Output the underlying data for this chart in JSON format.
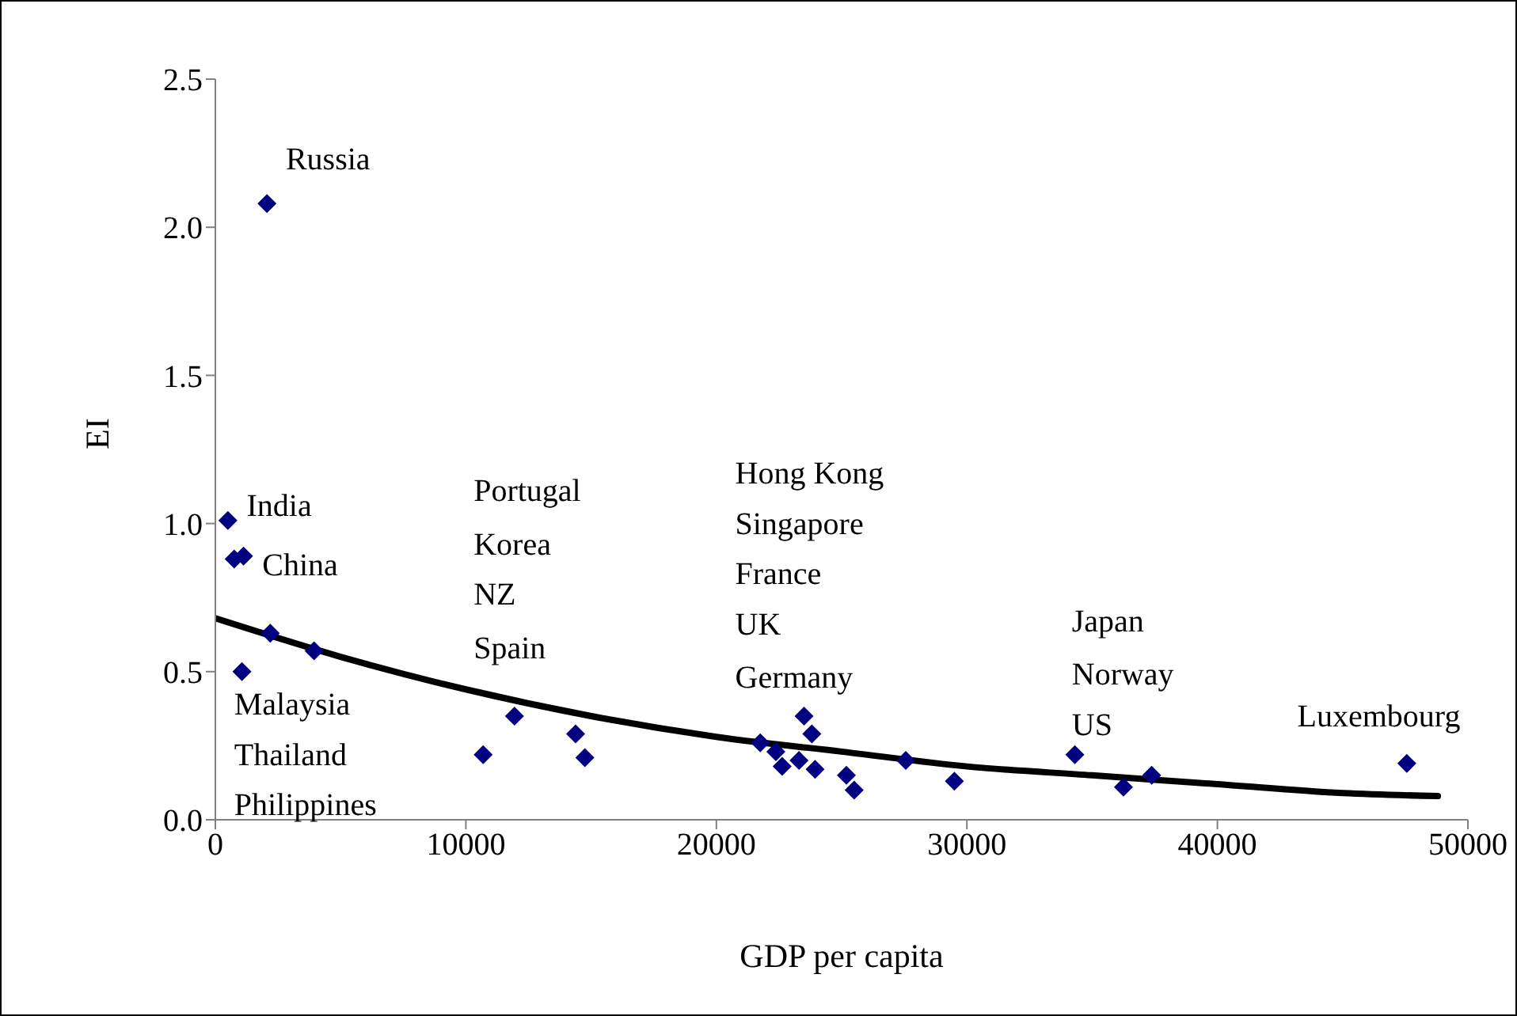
{
  "chart_data": {
    "type": "scatter",
    "xlabel": "GDP per capita",
    "ylabel": "EI",
    "xlim": [
      0,
      50000
    ],
    "xticks": [
      0,
      10000,
      20000,
      30000,
      40000,
      50000
    ],
    "ylim": [
      0,
      2.5
    ],
    "yticks": [
      {
        "value": 0,
        "label": "0.0"
      },
      {
        "value": 0.5,
        "label": "0.5"
      },
      {
        "value": 1,
        "label": "1.0"
      },
      {
        "value": 1.5,
        "label": "1.5"
      },
      {
        "value": 2,
        "label": "2.0"
      },
      {
        "value": 2.5,
        "label": "2.5"
      }
    ],
    "grid": false,
    "legend": false,
    "marker": "diamond",
    "series": [
      {
        "color": "#000080",
        "x": [
          500,
          750,
          1125,
          1060,
          2190,
          2060,
          3940,
          10690,
          11940,
          14380,
          14750,
          21750,
          22375,
          22625,
          23500,
          23810,
          23300,
          23940,
          25190,
          25500,
          27560,
          29500,
          34310,
          36250,
          37375,
          47560
        ],
        "values": [
          1.01,
          0.88,
          0.89,
          0.5,
          0.63,
          2.08,
          0.57,
          0.22,
          0.35,
          0.29,
          0.21,
          0.26,
          0.23,
          0.18,
          0.35,
          0.29,
          0.2,
          0.17,
          0.15,
          0.1,
          0.2,
          0.13,
          0.22,
          0.11,
          0.15,
          0.19
        ]
      },
      {
        "type": "line",
        "color": "#000000",
        "line_style": "solid",
        "marker": "none",
        "x": [
          0,
          5000,
          10000,
          15000,
          20000,
          25000,
          30000,
          35000,
          40000,
          45000,
          48800
        ],
        "values": [
          0.68,
          0.55,
          0.44,
          0.35,
          0.28,
          0.23,
          0.18,
          0.15,
          0.12,
          0.09,
          0.08
        ]
      }
    ],
    "annotations": [
      "Russia",
      "India",
      "China",
      "Malaysia",
      "Thailand",
      "Philippines",
      "Portugal",
      "Korea",
      "NZ",
      "Spain",
      "Hong Kong",
      "Singapore",
      "France",
      "UK",
      "Germany",
      "Japan",
      "Norway",
      "US",
      "Luxembourg"
    ]
  }
}
